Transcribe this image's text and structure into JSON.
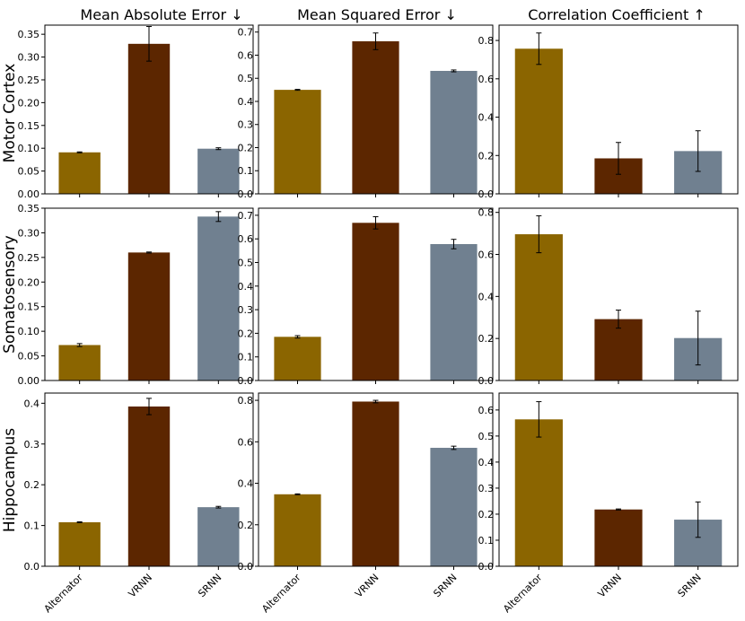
{
  "colors": {
    "Alternator": "#8b6500",
    "VRNN": "#5c2600",
    "SRNN": "#708090",
    "errorbar": "#000000",
    "frame": "#000000"
  },
  "column_titles": [
    "Mean Absolute Error ↓",
    "Mean Squared Error ↓",
    "Correlation Coefficient ↑"
  ],
  "row_labels": [
    "Motor Cortex",
    "Somatosensory",
    "Hippocampus"
  ],
  "chart_data": [
    {
      "type": "bar",
      "row": "Motor Cortex",
      "title": "Mean Absolute Error ↓",
      "categories": [
        "Alternator",
        "VRNN",
        "SRNN"
      ],
      "values": [
        0.091,
        0.329,
        0.099
      ],
      "errors": [
        0.001,
        0.038,
        0.002
      ],
      "ylim": [
        0,
        0.37
      ],
      "yticks": [
        0,
        0.05,
        0.1,
        0.15,
        0.2,
        0.25,
        0.3,
        0.35
      ],
      "ytick_labels": [
        "0.00",
        "0.05",
        "0.10",
        "0.15",
        "0.20",
        "0.25",
        "0.30",
        "0.35"
      ]
    },
    {
      "type": "bar",
      "row": "Motor Cortex",
      "title": "Mean Squared Error ↓",
      "categories": [
        "Alternator",
        "VRNN",
        "SRNN"
      ],
      "values": [
        0.45,
        0.66,
        0.532
      ],
      "errors": [
        0.002,
        0.036,
        0.004
      ],
      "ylim": [
        0,
        0.73
      ],
      "yticks": [
        0,
        0.1,
        0.2,
        0.3,
        0.4,
        0.5,
        0.6,
        0.7
      ],
      "ytick_labels": [
        "0.0",
        "0.1",
        "0.2",
        "0.3",
        "0.4",
        "0.5",
        "0.6",
        "0.7"
      ]
    },
    {
      "type": "bar",
      "row": "Motor Cortex",
      "title": "Correlation Coefficient ↑",
      "categories": [
        "Alternator",
        "VRNN",
        "SRNN"
      ],
      "values": [
        0.757,
        0.185,
        0.223
      ],
      "errors": [
        0.082,
        0.083,
        0.106
      ],
      "ylim": [
        0,
        0.88
      ],
      "yticks": [
        0,
        0.2,
        0.4,
        0.6,
        0.8
      ],
      "ytick_labels": [
        "0.0",
        "0.2",
        "0.4",
        "0.6",
        "0.8"
      ]
    },
    {
      "type": "bar",
      "row": "Somatosensory",
      "title": "Mean Absolute Error ↓",
      "categories": [
        "Alternator",
        "VRNN",
        "SRNN"
      ],
      "values": [
        0.072,
        0.26,
        0.333
      ],
      "errors": [
        0.003,
        0.001,
        0.01
      ],
      "ylim": [
        0,
        0.35
      ],
      "yticks": [
        0,
        0.05,
        0.1,
        0.15,
        0.2,
        0.25,
        0.3,
        0.35
      ],
      "ytick_labels": [
        "0.00",
        "0.05",
        "0.10",
        "0.15",
        "0.20",
        "0.25",
        "0.30",
        "0.35"
      ]
    },
    {
      "type": "bar",
      "row": "Somatosensory",
      "title": "Mean Squared Error ↓",
      "categories": [
        "Alternator",
        "VRNN",
        "SRNN"
      ],
      "values": [
        0.185,
        0.668,
        0.578
      ],
      "errors": [
        0.005,
        0.026,
        0.02
      ],
      "ylim": [
        0,
        0.73
      ],
      "yticks": [
        0,
        0.1,
        0.2,
        0.3,
        0.4,
        0.5,
        0.6,
        0.7
      ],
      "ytick_labels": [
        "0.0",
        "0.1",
        "0.2",
        "0.3",
        "0.4",
        "0.5",
        "0.6",
        "0.7"
      ]
    },
    {
      "type": "bar",
      "row": "Somatosensory",
      "title": "Correlation Coefficient ↑",
      "categories": [
        "Alternator",
        "VRNN",
        "SRNN"
      ],
      "values": [
        0.696,
        0.292,
        0.202
      ],
      "errors": [
        0.088,
        0.043,
        0.128
      ],
      "ylim": [
        0,
        0.82
      ],
      "yticks": [
        0,
        0.2,
        0.4,
        0.6,
        0.8
      ],
      "ytick_labels": [
        "0.0",
        "0.2",
        "0.4",
        "0.6",
        "0.8"
      ]
    },
    {
      "type": "bar",
      "row": "Hippocampus",
      "title": "Mean Absolute Error ↓",
      "categories": [
        "Alternator",
        "VRNN",
        "SRNN"
      ],
      "values": [
        0.108,
        0.392,
        0.145
      ],
      "errors": [
        0.001,
        0.02,
        0.002
      ],
      "ylim": [
        0,
        0.425
      ],
      "yticks": [
        0,
        0.1,
        0.2,
        0.3,
        0.4
      ],
      "ytick_labels": [
        "0.0",
        "0.1",
        "0.2",
        "0.3",
        "0.4"
      ]
    },
    {
      "type": "bar",
      "row": "Hippocampus",
      "title": "Mean Squared Error ↓",
      "categories": [
        "Alternator",
        "VRNN",
        "SRNN"
      ],
      "values": [
        0.347,
        0.794,
        0.571
      ],
      "errors": [
        0.002,
        0.006,
        0.008
      ],
      "ylim": [
        0,
        0.835
      ],
      "yticks": [
        0,
        0.2,
        0.4,
        0.6,
        0.8
      ],
      "ytick_labels": [
        "0.0",
        "0.2",
        "0.4",
        "0.6",
        "0.8"
      ]
    },
    {
      "type": "bar",
      "row": "Hippocampus",
      "title": "Correlation Coefficient ↑",
      "categories": [
        "Alternator",
        "VRNN",
        "SRNN"
      ],
      "values": [
        0.564,
        0.218,
        0.179
      ],
      "errors": [
        0.068,
        0.002,
        0.068
      ],
      "ylim": [
        0,
        0.665
      ],
      "yticks": [
        0,
        0.1,
        0.2,
        0.3,
        0.4,
        0.5,
        0.6
      ],
      "ytick_labels": [
        "0.0",
        "0.1",
        "0.2",
        "0.3",
        "0.4",
        "0.5",
        "0.6"
      ]
    }
  ]
}
